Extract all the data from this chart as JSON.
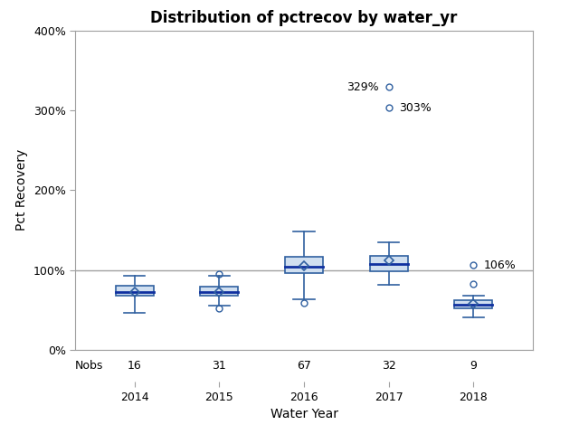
{
  "title": "Distribution of pctrecov by water_yr",
  "xlabel": "Water Year",
  "ylabel": "Pct Recovery",
  "years": [
    2014,
    2015,
    2016,
    2017,
    2018
  ],
  "nobs": [
    16,
    31,
    67,
    32,
    9
  ],
  "boxes": {
    "2014": {
      "q1": 68,
      "median": 73,
      "q3": 80,
      "mean": 73,
      "whisker_low": 47,
      "whisker_high": 93,
      "outliers": []
    },
    "2015": {
      "q1": 68,
      "median": 73,
      "q3": 79,
      "mean": 73,
      "whisker_low": 55,
      "whisker_high": 93,
      "outliers": [
        95,
        52
      ]
    },
    "2016": {
      "q1": 96,
      "median": 104,
      "q3": 117,
      "mean": 105,
      "whisker_low": 63,
      "whisker_high": 148,
      "outliers": [
        59
      ]
    },
    "2017": {
      "q1": 99,
      "median": 108,
      "q3": 118,
      "mean": 112,
      "whisker_low": 81,
      "whisker_high": 135,
      "outliers": [
        329,
        303
      ]
    },
    "2018": {
      "q1": 52,
      "median": 57,
      "q3": 62,
      "mean": 58,
      "whisker_low": 41,
      "whisker_high": 68,
      "outliers": [
        106,
        83
      ]
    }
  },
  "outlier_labels": {
    "2017": [
      {
        "value": 329,
        "label": "329%",
        "side": "left"
      },
      {
        "value": 303,
        "label": "303%",
        "side": "right"
      }
    ],
    "2018": [
      {
        "value": 106,
        "label": "106%",
        "side": "right"
      }
    ]
  },
  "reference_line": 100,
  "ylim": [
    0,
    400
  ],
  "yticks": [
    0,
    100,
    200,
    300,
    400
  ],
  "ytick_labels": [
    "0%",
    "100%",
    "200%",
    "300%",
    "400%"
  ],
  "box_facecolor": "#d0dff0",
  "box_edgecolor": "#3060a0",
  "median_color": "#1030a0",
  "whisker_color": "#3060a0",
  "cap_color": "#3060a0",
  "mean_marker_edgecolor": "#3060a0",
  "outlier_edgecolor": "#3060a0",
  "ref_line_color": "#a0a0a0",
  "background_color": "#ffffff",
  "plot_bg_color": "#ffffff",
  "title_fontsize": 12,
  "label_fontsize": 10,
  "tick_fontsize": 9,
  "nobs_fontsize": 9
}
